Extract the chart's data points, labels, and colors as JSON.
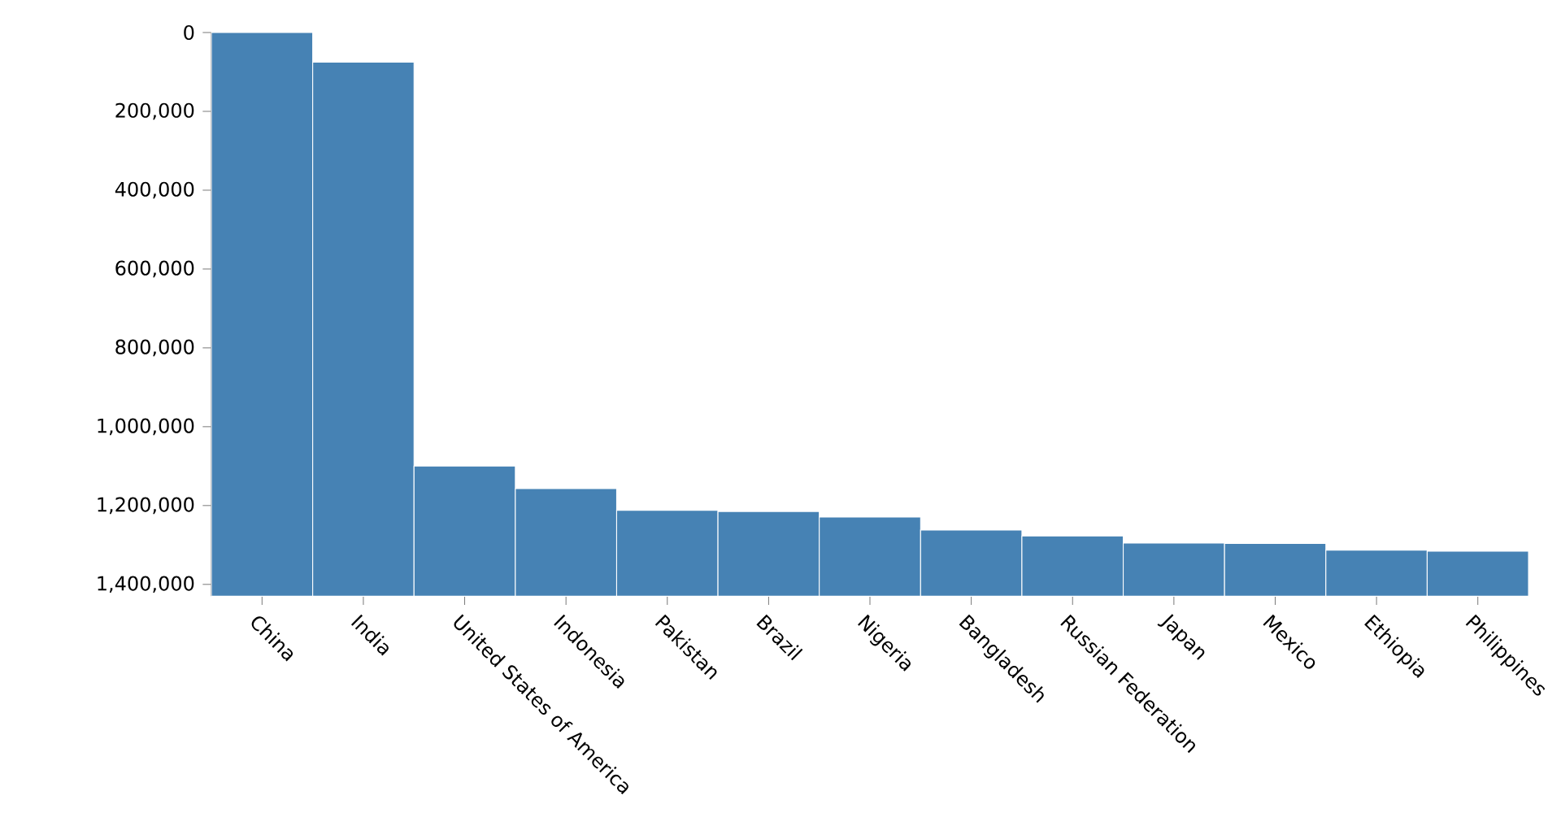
{
  "chart_data": {
    "type": "bar",
    "categories": [
      "China",
      "India",
      "United States of America",
      "Indonesia",
      "Pakistan",
      "Brazil",
      "Nigeria",
      "Bangladesh",
      "Russian Federation",
      "Japan",
      "Mexico",
      "Ethiopia",
      "Philippines"
    ],
    "base": [
      0,
      75000,
      1100000,
      1157000,
      1212000,
      1215000,
      1229000,
      1262000,
      1277000,
      1295000,
      1296000,
      1313000,
      1316000
    ],
    "values": [
      1430000,
      1355000,
      330000,
      273000,
      218000,
      215000,
      201000,
      168000,
      153000,
      135000,
      134000,
      117000,
      114000
    ],
    "color": "#4682b4",
    "ylim": [
      1430000,
      0
    ],
    "yticks": [
      0,
      {
        "value": 200000,
        "label": "200,000"
      },
      {
        "value": 400000,
        "label": "400,000"
      },
      {
        "value": 600000,
        "label": "600,000"
      },
      {
        "value": 800000,
        "label": "800,000"
      },
      {
        "value": 1000000,
        "label": "1,000,000"
      },
      {
        "value": 1200000,
        "label": "1,200,000"
      },
      {
        "value": 1400000,
        "label": "1,400,000"
      }
    ]
  }
}
